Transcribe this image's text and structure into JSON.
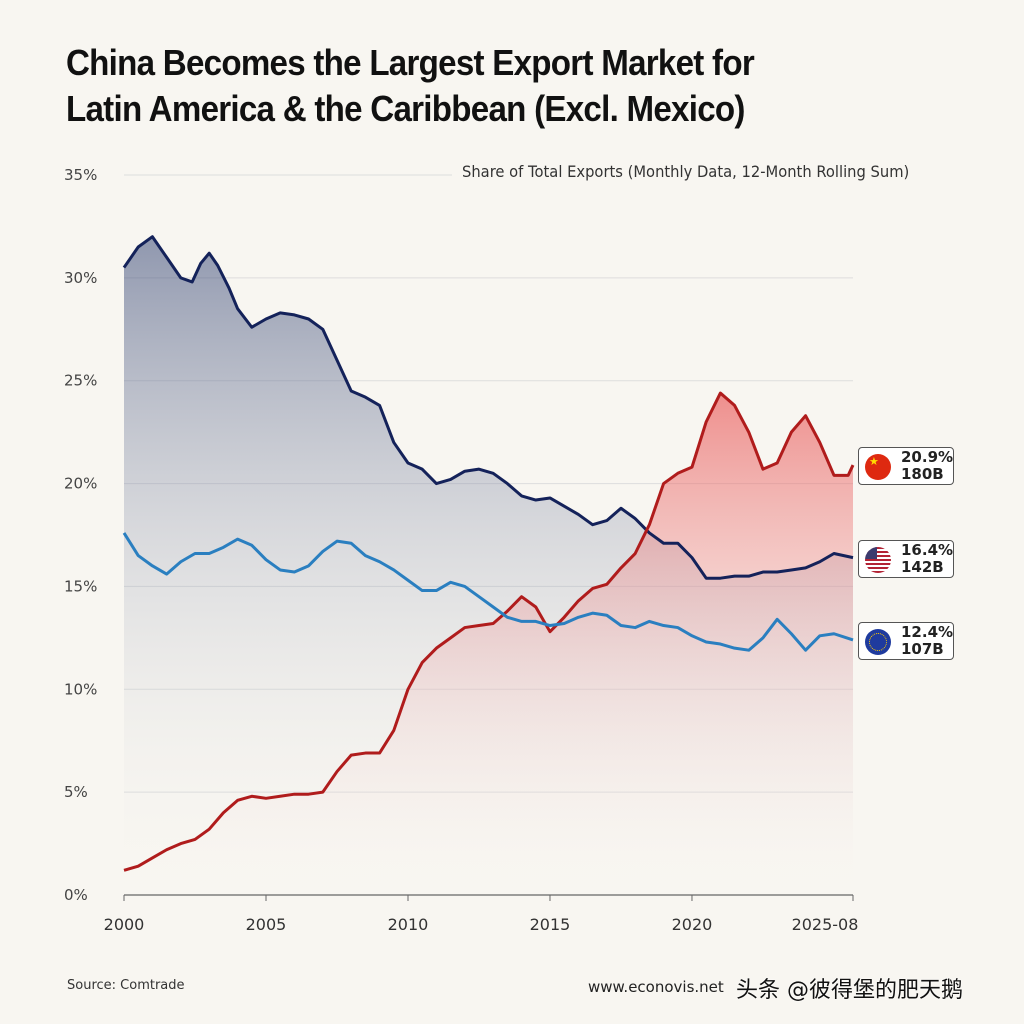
{
  "chart_data": {
    "type": "line",
    "title": "China Becomes the Largest Export Market for Latin America & the Caribbean (Excl. Mexico)",
    "subtitle": "Share of Total Exports (Monthly Data, 12-Month Rolling Sum)",
    "xlabel": "",
    "ylabel": "",
    "xlim": [
      2000,
      2025.67
    ],
    "ylim": [
      0,
      35
    ],
    "grid": true,
    "y_ticks": [
      "0%",
      "5%",
      "10%",
      "15%",
      "20%",
      "25%",
      "30%",
      "35%"
    ],
    "x_ticks": [
      "2000",
      "2005",
      "2010",
      "2015",
      "2020",
      "2025-08"
    ],
    "series": [
      {
        "key": "us",
        "color": "#14225a",
        "fill": "#3a4a78",
        "x": [
          2000,
          2000.5,
          2001,
          2001.5,
          2002,
          2002.4,
          2002.7,
          2003,
          2003.3,
          2003.7,
          2004,
          2004.5,
          2005,
          2005.5,
          2006,
          2006.5,
          2007,
          2007.5,
          2008,
          2008.5,
          2009,
          2009.5,
          2010,
          2010.5,
          2011,
          2011.5,
          2012,
          2012.5,
          2013,
          2013.5,
          2014,
          2014.5,
          2015,
          2015.5,
          2016,
          2016.5,
          2017,
          2017.5,
          2018,
          2018.5,
          2019,
          2019.5,
          2020,
          2020.5,
          2021,
          2021.5,
          2022,
          2022.5,
          2023,
          2023.5,
          2024,
          2024.5,
          2025,
          2025.67
        ],
        "y": [
          30.5,
          31.5,
          32,
          31,
          30,
          29.8,
          30.7,
          31.2,
          30.6,
          29.5,
          28.5,
          27.6,
          28,
          28.3,
          28.2,
          28,
          27.5,
          26,
          24.5,
          24.2,
          23.8,
          22,
          21,
          20.7,
          20,
          20.2,
          20.6,
          20.7,
          20.5,
          20,
          19.4,
          19.2,
          19.3,
          18.9,
          18.5,
          18,
          18.2,
          18.8,
          18.3,
          17.6,
          17.1,
          17.1,
          16.4,
          15.4,
          15.4,
          15.5,
          15.5,
          15.7,
          15.7,
          15.8,
          15.9,
          16.2,
          16.6,
          16.4
        ]
      },
      {
        "key": "eu",
        "color": "#2a7fc0",
        "x": [
          2000,
          2000.5,
          2001,
          2001.5,
          2002,
          2002.5,
          2003,
          2003.5,
          2004,
          2004.5,
          2005,
          2005.5,
          2006,
          2006.5,
          2007,
          2007.5,
          2008,
          2008.5,
          2009,
          2009.5,
          2010,
          2010.5,
          2011,
          2011.5,
          2012,
          2012.5,
          2013,
          2013.5,
          2014,
          2014.5,
          2015,
          2015.5,
          2016,
          2016.5,
          2017,
          2017.5,
          2018,
          2018.5,
          2019,
          2019.5,
          2020,
          2020.5,
          2021,
          2021.5,
          2022,
          2022.5,
          2023,
          2023.5,
          2024,
          2024.5,
          2025,
          2025.67
        ],
        "y": [
          17.6,
          16.5,
          16,
          15.6,
          16.2,
          16.6,
          16.6,
          16.9,
          17.3,
          17,
          16.3,
          15.8,
          15.7,
          16,
          16.7,
          17.2,
          17.1,
          16.5,
          16.2,
          15.8,
          15.3,
          14.8,
          14.8,
          15.2,
          15,
          14.5,
          14,
          13.5,
          13.3,
          13.3,
          13.1,
          13.2,
          13.5,
          13.7,
          13.6,
          13.1,
          13,
          13.3,
          13.1,
          13,
          12.6,
          12.3,
          12.2,
          12,
          11.9,
          12.5,
          13.4,
          12.7,
          11.9,
          12.6,
          12.7,
          12.4
        ]
      },
      {
        "key": "china",
        "color": "#b01c1c",
        "fill": "#e84a4a",
        "x": [
          2000,
          2000.5,
          2001,
          2001.5,
          2002,
          2002.5,
          2003,
          2003.5,
          2004,
          2004.5,
          2005,
          2005.5,
          2006,
          2006.5,
          2007,
          2007.5,
          2008,
          2008.5,
          2009,
          2009.5,
          2010,
          2010.5,
          2011,
          2011.5,
          2012,
          2012.5,
          2013,
          2013.5,
          2014,
          2014.5,
          2015,
          2015.5,
          2016,
          2016.5,
          2017,
          2017.5,
          2018,
          2018.5,
          2019,
          2019.5,
          2020,
          2020.5,
          2021,
          2021.5,
          2022,
          2022.5,
          2023,
          2023.5,
          2024,
          2024.5,
          2025,
          2025.5,
          2025.67
        ],
        "y": [
          1.2,
          1.4,
          1.8,
          2.2,
          2.5,
          2.7,
          3.2,
          4,
          4.6,
          4.8,
          4.7,
          4.8,
          4.9,
          4.9,
          5,
          6,
          6.8,
          6.9,
          6.9,
          8,
          10,
          11.3,
          12,
          12.5,
          13,
          13.1,
          13.2,
          13.8,
          14.5,
          14,
          12.8,
          13.5,
          14.3,
          14.9,
          15.1,
          15.9,
          16.6,
          18,
          20,
          20.5,
          20.8,
          23,
          24.4,
          23.8,
          22.5,
          20.7,
          21,
          22.5,
          23.3,
          22,
          20.4,
          20.4,
          20.9
        ]
      }
    ],
    "annotations": [
      {
        "series": "china",
        "flag": "china-flag",
        "value": "20.9%",
        "amount": "180B"
      },
      {
        "series": "us",
        "flag": "us-flag",
        "value": "16.4%",
        "amount": "142B"
      },
      {
        "series": "eu",
        "flag": "eu-flag",
        "value": "12.4%",
        "amount": "107B"
      }
    ]
  },
  "footer": {
    "source": "Source: Comtrade",
    "site": "www.econovis.net",
    "watermark": "头条 @彼得堡的肥天鹅"
  }
}
